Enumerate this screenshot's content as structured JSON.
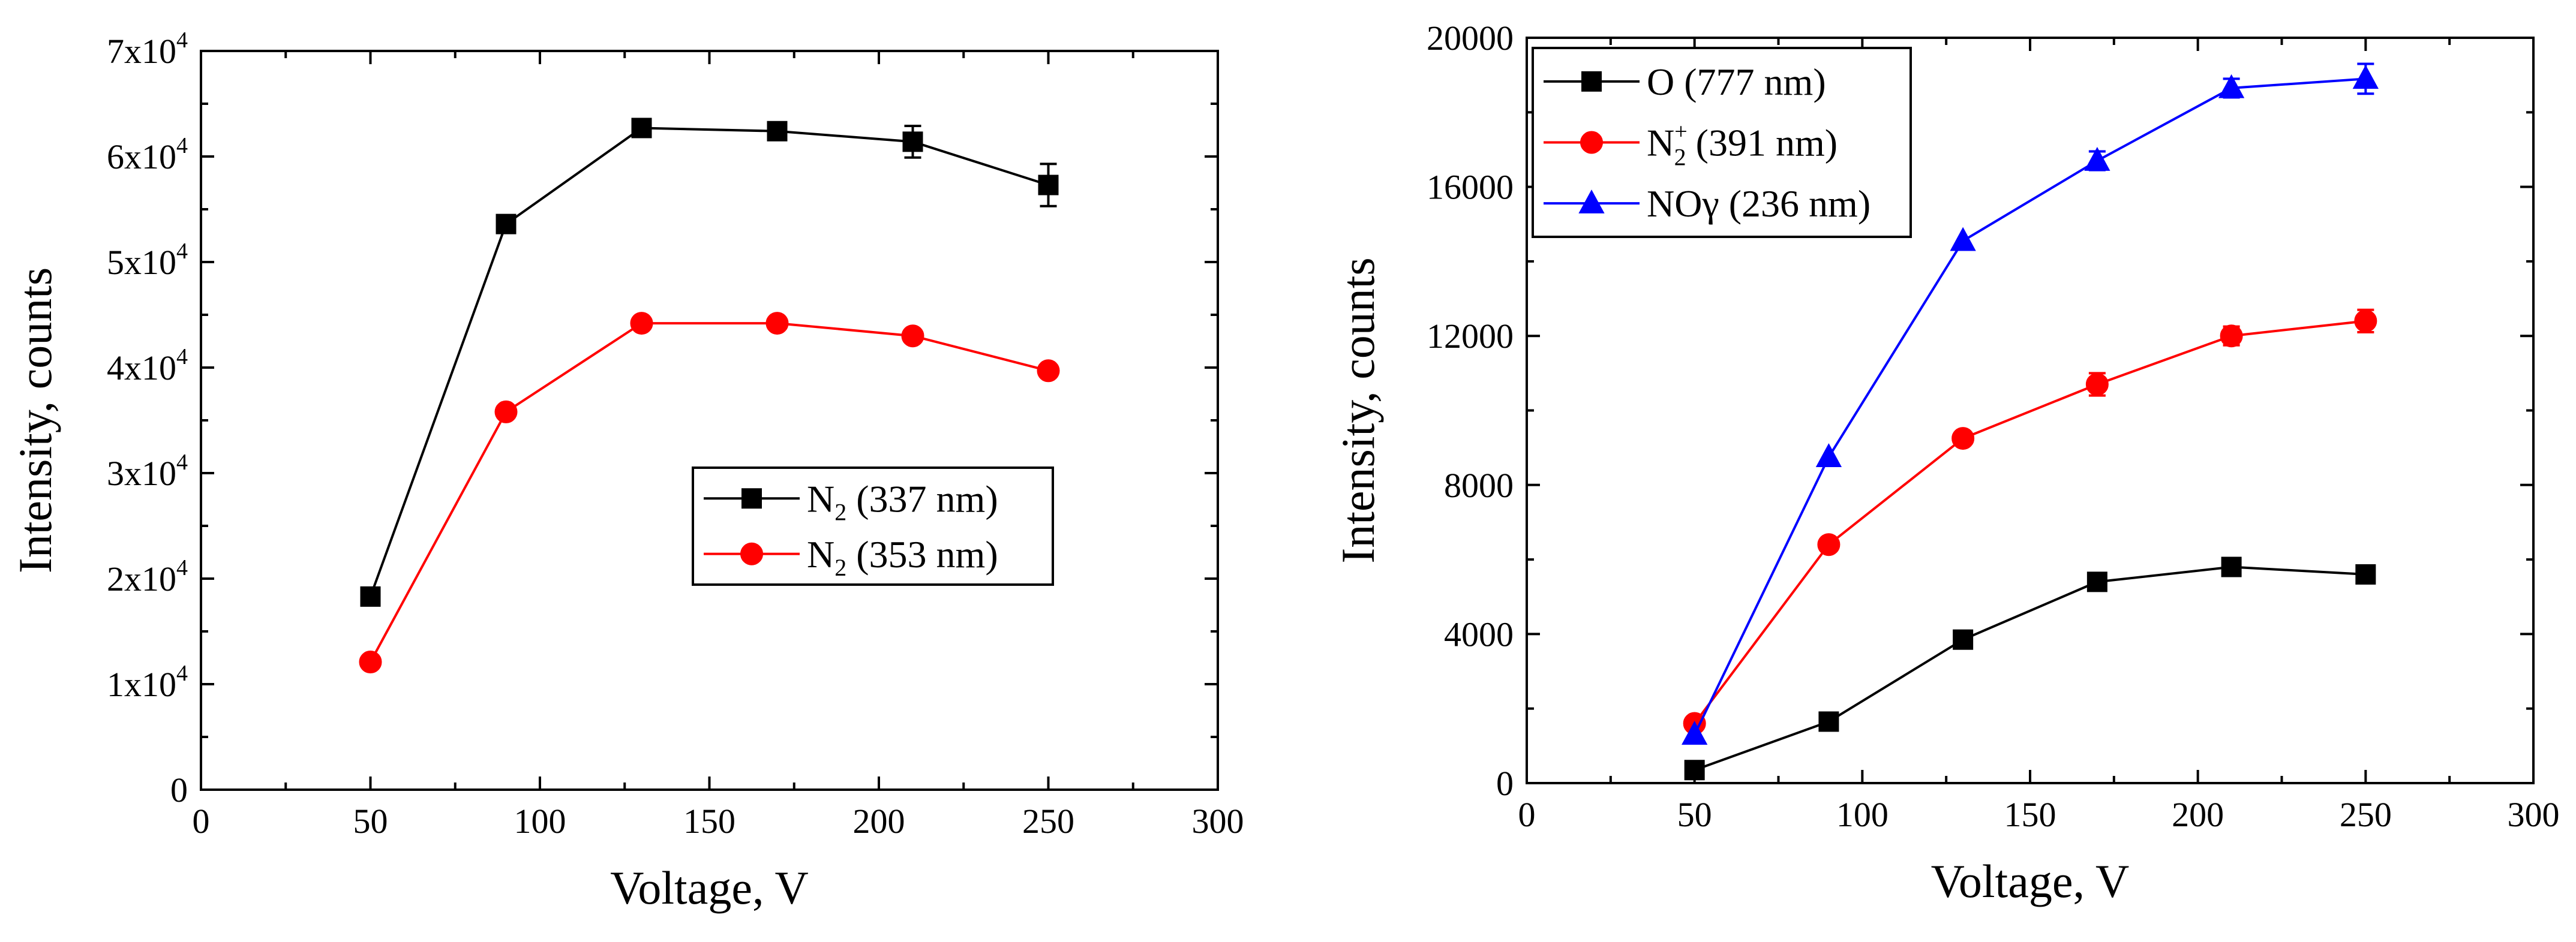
{
  "chart_data": [
    {
      "type": "line",
      "xlabel": "Voltage, V",
      "ylabel": "Intensity, counts",
      "xlim": [
        0,
        300
      ],
      "ylim": [
        0,
        70000
      ],
      "x_ticks": [
        0,
        50,
        100,
        150,
        200,
        250,
        300
      ],
      "x_tick_labels": [
        "0",
        "50",
        "100",
        "150",
        "200",
        "250",
        "300"
      ],
      "y_ticks": [
        0,
        10000,
        20000,
        30000,
        40000,
        50000,
        60000,
        70000
      ],
      "y_tick_labels": [
        {
          "base": "0",
          "exp": ""
        },
        {
          "base": "1x10",
          "exp": "4"
        },
        {
          "base": "2x10",
          "exp": "4"
        },
        {
          "base": "3x10",
          "exp": "4"
        },
        {
          "base": "4x10",
          "exp": "4"
        },
        {
          "base": "5x10",
          "exp": "4"
        },
        {
          "base": "6x10",
          "exp": "4"
        },
        {
          "base": "7x10",
          "exp": "4"
        }
      ],
      "legend_position": "center-right",
      "series": [
        {
          "name": "N2 (337 nm)",
          "label": {
            "main": "N",
            "sub": "2",
            "sup": "",
            "rest": " (337 nm)"
          },
          "color": "#000000",
          "marker": "square",
          "x": [
            50,
            90,
            130,
            170,
            210,
            250
          ],
          "y": [
            18300,
            53600,
            62700,
            62400,
            61400,
            57300
          ],
          "err": [
            0,
            0,
            0,
            0,
            1500,
            2000
          ]
        },
        {
          "name": "N2 (353 nm)",
          "label": {
            "main": "N",
            "sub": "2",
            "sup": "",
            "rest": " (353 nm)"
          },
          "color": "#ff0000",
          "marker": "circle",
          "x": [
            50,
            90,
            130,
            170,
            210,
            250
          ],
          "y": [
            12100,
            35800,
            44200,
            44200,
            43000,
            39700
          ],
          "err": [
            0,
            0,
            0,
            0,
            0,
            0
          ]
        }
      ]
    },
    {
      "type": "line",
      "xlabel": "Voltage, V",
      "ylabel": "Intensity, counts",
      "xlim": [
        0,
        300
      ],
      "ylim": [
        0,
        20000
      ],
      "x_ticks": [
        0,
        50,
        100,
        150,
        200,
        250,
        300
      ],
      "x_tick_labels": [
        "0",
        "50",
        "100",
        "150",
        "200",
        "250",
        "300"
      ],
      "y_ticks": [
        0,
        4000,
        8000,
        12000,
        16000,
        20000
      ],
      "y_tick_labels": [
        {
          "base": "0",
          "exp": ""
        },
        {
          "base": "4000",
          "exp": ""
        },
        {
          "base": "8000",
          "exp": ""
        },
        {
          "base": "12000",
          "exp": ""
        },
        {
          "base": "16000",
          "exp": ""
        },
        {
          "base": "20000",
          "exp": ""
        }
      ],
      "legend_position": "top-left",
      "series": [
        {
          "name": "O (777 nm)",
          "label": {
            "main": "O (777 nm)",
            "sub": "",
            "sup": "",
            "rest": ""
          },
          "color": "#000000",
          "marker": "square",
          "x": [
            50,
            90,
            130,
            170,
            210,
            250
          ],
          "y": [
            350,
            1650,
            3850,
            5400,
            5800,
            5600
          ],
          "err": [
            0,
            0,
            0,
            0,
            0,
            200
          ]
        },
        {
          "name": "N2+ (391 nm)",
          "label": {
            "main": "N",
            "sub": "2",
            "sup": "+",
            "rest": " (391 nm)"
          },
          "color": "#ff0000",
          "marker": "circle",
          "x": [
            50,
            90,
            130,
            170,
            210,
            250
          ],
          "y": [
            1600,
            6400,
            9250,
            10700,
            12000,
            12400
          ],
          "err": [
            0,
            0,
            0,
            300,
            250,
            300
          ]
        },
        {
          "name": "NOγ (236 nm)",
          "label": {
            "main": "NOγ (236 nm)",
            "sub": "",
            "sup": "",
            "rest": ""
          },
          "color": "#0000ff",
          "marker": "triangle",
          "x": [
            50,
            90,
            130,
            170,
            210,
            250
          ],
          "y": [
            1300,
            8750,
            14550,
            16700,
            18650,
            18900
          ],
          "err": [
            0,
            0,
            0,
            250,
            250,
            400
          ]
        }
      ]
    }
  ]
}
